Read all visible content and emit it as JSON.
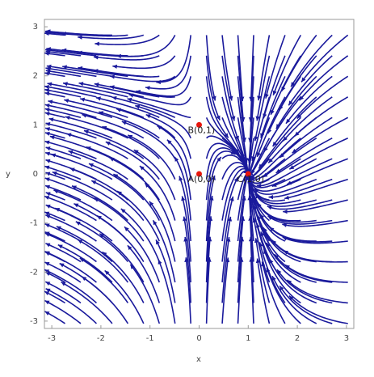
{
  "chart_data": {
    "type": "streamplot",
    "x_label": "x",
    "y_label": "y",
    "xlim": [
      -3.15,
      3.15
    ],
    "ylim": [
      -3.15,
      3.15
    ],
    "xticks": [
      -3,
      -2,
      -1,
      0,
      1,
      2,
      3
    ],
    "yticks": [
      -3,
      -2,
      -1,
      0,
      1,
      2,
      3
    ],
    "stream_color": "#1a1a9c",
    "point_color": "#e8160c",
    "points": {
      "x": [
        0,
        0,
        1
      ],
      "y": [
        0,
        1,
        0
      ],
      "labels": [
        "A(0,0)",
        "B(0,1)",
        "C(1,0)"
      ]
    }
  }
}
